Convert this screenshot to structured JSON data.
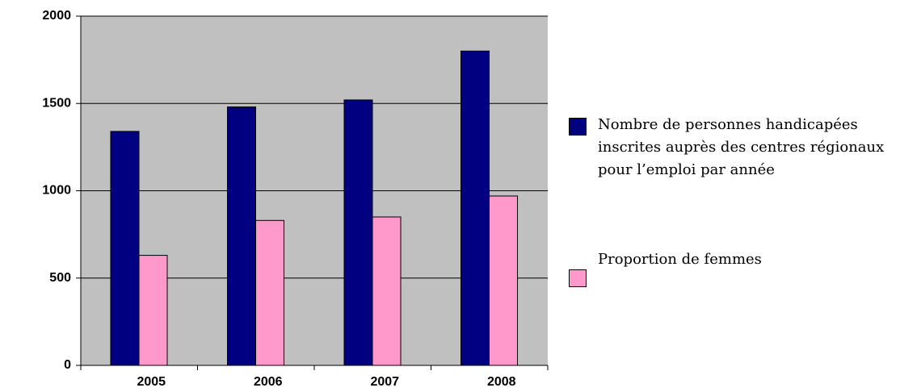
{
  "chart_data": {
    "type": "bar",
    "categories": [
      "2005",
      "2006",
      "2007",
      "2008"
    ],
    "series": [
      {
        "name": "Nombre de personnes handicapées inscrites auprès des centres régionaux pour l’emploi par année",
        "color": "#000080",
        "values": [
          1340,
          1480,
          1520,
          1800
        ]
      },
      {
        "name": "Proportion de femmes",
        "color": "#ff99cc",
        "values": [
          630,
          830,
          850,
          970
        ]
      }
    ],
    "ylim": [
      0,
      2000
    ],
    "yticks": [
      0,
      500,
      1000,
      1500,
      2000
    ],
    "grid": true,
    "plot_background": "#c0c0c0",
    "legend": "right"
  }
}
